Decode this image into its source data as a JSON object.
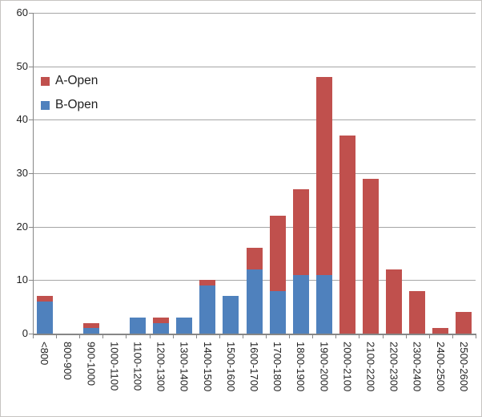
{
  "chart_data": {
    "type": "bar",
    "stacked": true,
    "title": "",
    "xlabel": "",
    "ylabel": "",
    "categories": [
      "<800",
      "800-900",
      "900-1000",
      "1000-1100",
      "1100-1200",
      "1200-1300",
      "1300-1400",
      "1400-1500",
      "1500-1600",
      "1600-1700",
      "1700-1800",
      "1800-1900",
      "1900-2000",
      "2000-2100",
      "2100-2200",
      "2200-2300",
      "2300-2400",
      "2400-2500",
      "2500-2600"
    ],
    "series": [
      {
        "name": "A-Open",
        "color": "#C0504D",
        "values": [
          1,
          0,
          1,
          0,
          0,
          1,
          0,
          1,
          0,
          4,
          14,
          16,
          37,
          37,
          29,
          12,
          8,
          1,
          4
        ]
      },
      {
        "name": "B-Open",
        "color": "#4F81BD",
        "values": [
          6,
          0,
          1,
          0,
          3,
          2,
          3,
          9,
          7,
          12,
          8,
          11,
          11,
          0,
          0,
          0,
          0,
          0,
          0
        ]
      }
    ],
    "stack_order_bottom_to_top": [
      "B-Open",
      "A-Open"
    ],
    "ylim": [
      0,
      60
    ],
    "yticks": [
      0,
      10,
      20,
      30,
      40,
      50,
      60
    ],
    "grid": true,
    "legend_position": "inside-top-left"
  },
  "legend": {
    "items": [
      {
        "label": "A-Open",
        "color": "#C0504D"
      },
      {
        "label": "B-Open",
        "color": "#4F81BD"
      }
    ]
  },
  "axis": {
    "line_color": "#868686",
    "grid_color": "#A6A6A6",
    "text_color": "#1F1F1F"
  }
}
